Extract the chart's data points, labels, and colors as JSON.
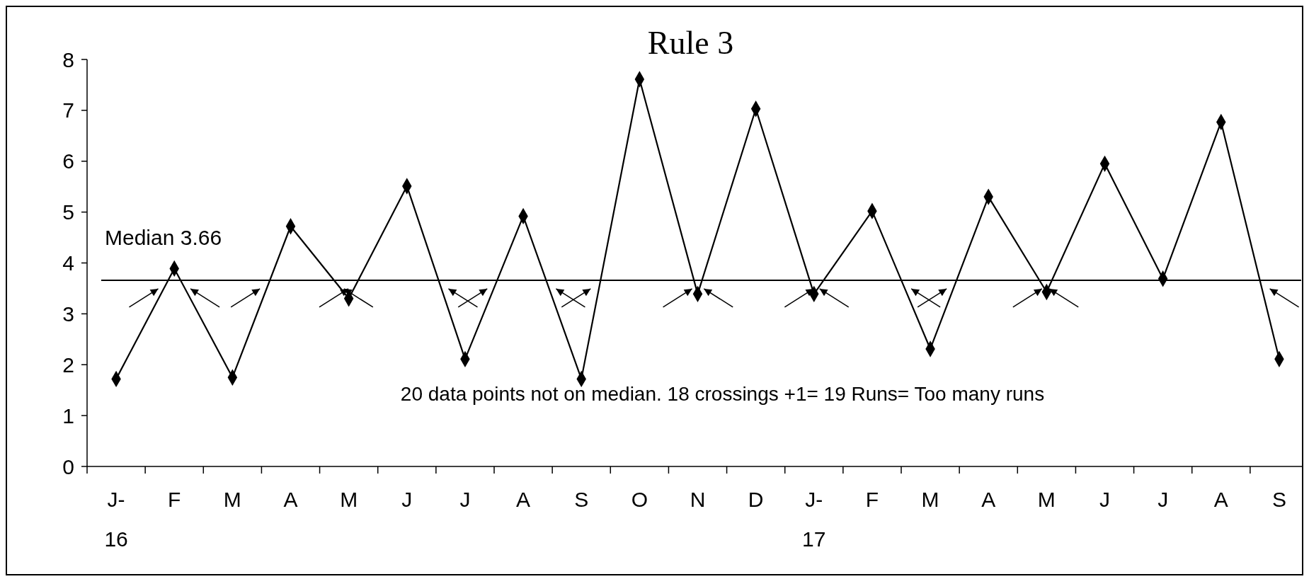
{
  "chart_data": {
    "type": "line",
    "title": "Rule 3",
    "categories": [
      "J-\n16",
      "F",
      "M",
      "A",
      "M",
      "J",
      "J",
      "A",
      "S",
      "O",
      "N",
      "D",
      "J-\n17",
      "F",
      "M",
      "A",
      "M",
      "J",
      "J",
      "A",
      "S"
    ],
    "series": [
      {
        "color": "#000000",
        "values": [
          1.72,
          3.89,
          1.75,
          4.72,
          3.3,
          5.51,
          2.11,
          4.92,
          1.72,
          7.61,
          3.39,
          7.03,
          3.39,
          5.02,
          2.31,
          5.3,
          3.43,
          5.95,
          3.69,
          6.77,
          2.11
        ]
      }
    ],
    "ylim": [
      0,
      8
    ],
    "yticks": [
      0,
      1,
      2,
      3,
      4,
      5,
      6,
      7,
      8
    ],
    "ref_lines": [
      {
        "axis": "y",
        "value": 3.66,
        "label": "Median 3.66",
        "color": "#000000"
      }
    ],
    "annotations": [
      "20 data points not on median. 18 crossings +1= 19 Runs= Too many runs"
    ],
    "marker": "diamond",
    "line_style": "solid",
    "grid": false
  }
}
